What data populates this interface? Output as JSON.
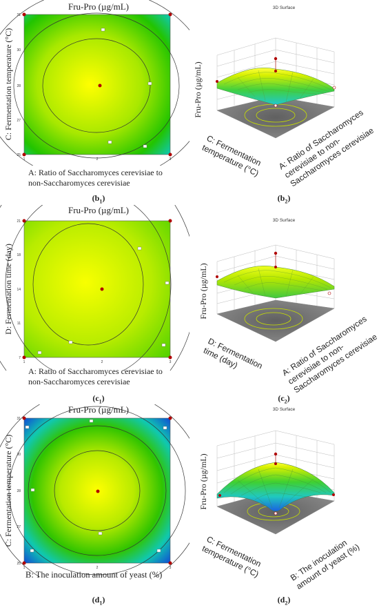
{
  "chart_data": [
    {
      "id": "b1",
      "type": "contour",
      "title": "Fru-Pro (µg/mL)",
      "xlabel": "A: Ratio of Saccharomyces cerevisiae to non-Saccharomyces cerevisiae",
      "ylabel": "C: Fermentation temperature (°C)",
      "xticks": [
        "1",
        "2",
        "3"
      ],
      "yticks": [
        "25",
        "27",
        "28",
        "30",
        "31"
      ],
      "center_point": {
        "x": 2,
        "y": 28
      }
    },
    {
      "id": "b2",
      "type": "surface",
      "title": "3D Surface",
      "zlabel": "Fru-Pro (µg/mL)",
      "xlabel": "A: Ratio of Saccharomyces cerevisiae to non-Saccharomyces cerevisiae",
      "ylabel": "C: Fermentation temperature (°C)"
    },
    {
      "id": "c1",
      "type": "contour",
      "title": "Fru-Pro (µg/mL)",
      "xlabel": "A: Ratio of Saccharomyces cerevisiae to non-Saccharomyces cerevisiae",
      "ylabel": "D: Fermentation time (day)",
      "xticks": [
        "1",
        "2",
        "3"
      ],
      "yticks": [
        "7",
        "11",
        "14",
        "18",
        "21"
      ],
      "center_point": {
        "x": 2,
        "y": 14
      }
    },
    {
      "id": "c2",
      "type": "surface",
      "title": "3D Surface",
      "zlabel": "Fru-Pro (µg/mL)",
      "xlabel": "A: Ratio of Saccharomyces cerevisiae to non-Saccharomyces cerevisiae",
      "ylabel": "D: Fermentation time (day)"
    },
    {
      "id": "d1",
      "type": "contour",
      "title": "Fru-Pro (µg/mL)",
      "xlabel": "B: The inoculation amount of yeast (%)",
      "ylabel": "C: Fermentation temperature (°C)",
      "xticks": [
        "1",
        "2",
        "3"
      ],
      "yticks": [
        "25",
        "27",
        "28",
        "30",
        "31"
      ],
      "center_point": {
        "x": 2,
        "y": 28
      }
    },
    {
      "id": "d2",
      "type": "surface",
      "title": "3D Surface",
      "zlabel": "Fru-Pro (µg/mL)",
      "xlabel": "B: The inoculation amount of yeast (%)",
      "ylabel": "C: Fermentation temperature (°C)"
    }
  ],
  "text": {
    "b1_title": "Fru-Pro (µg/mL)",
    "b1_ylabel": "C: Fermentation temperature (°C)",
    "b1_xlabel_l1": "A: Ratio of Saccharomyces cerevisiae to",
    "b1_xlabel_l2": "non-Saccharomyces cerevisiae",
    "b2_title": "3D Surface",
    "b2_z": "Fru-Pro (µg/mL)",
    "b2_y_l1": "C: Fermentation",
    "b2_y_l2": "temperature (°C)",
    "b2_x_l1": "A: Ratio of Saccharomyces",
    "b2_x_l2": "cerevisiae to non-",
    "b2_x_l3": "Saccharomyces cerevisiae",
    "c1_title": "Fru-Pro (µg/mL)",
    "c1_ylabel": "D: Fermentation time (day)",
    "c1_xlabel_l1": "A: Ratio of Saccharomyces cerevisiae to",
    "c1_xlabel_l2": "non-Saccharomyces cerevisiae",
    "c2_title": "3D Surface",
    "c2_z": "Fru-Pro (µg/mL)",
    "c2_y_l1": "D: Fermentation",
    "c2_y_l2": "time (day)",
    "c2_x_l1": "A: Ratio of Saccharomyces",
    "c2_x_l2": "cerevisiae to non-",
    "c2_x_l3": "Saccharomyces cerevisiae",
    "d1_title": "Fru-Pro (µg/mL)",
    "d1_ylabel": "C: Fermentation temperature (°C)",
    "d1_xlabel": "B: The inoculation amount of yeast (%)",
    "d2_title": "3D Surface",
    "d2_z": "Fru-Pro (µg/mL)",
    "d2_y_l1": "C: Fermentation",
    "d2_y_l2": "temperature (°C)",
    "d2_x_l1": "B: The inoculation",
    "d2_x_l2": "amount of yeast (%)"
  },
  "panel_labels": {
    "b1": {
      "letter": "b",
      "sub": "1"
    },
    "b2": {
      "letter": "b",
      "sub": "2"
    },
    "c1": {
      "letter": "c",
      "sub": "1"
    },
    "c2": {
      "letter": "c",
      "sub": "2"
    },
    "d1": {
      "letter": "d",
      "sub": "1"
    },
    "d2": {
      "letter": "d",
      "sub": "2"
    }
  },
  "colors": {
    "center": "#ffff00",
    "mid": "#7fe000",
    "outer": "#20c000",
    "corner": "#2060e0",
    "point": "#c00000"
  }
}
